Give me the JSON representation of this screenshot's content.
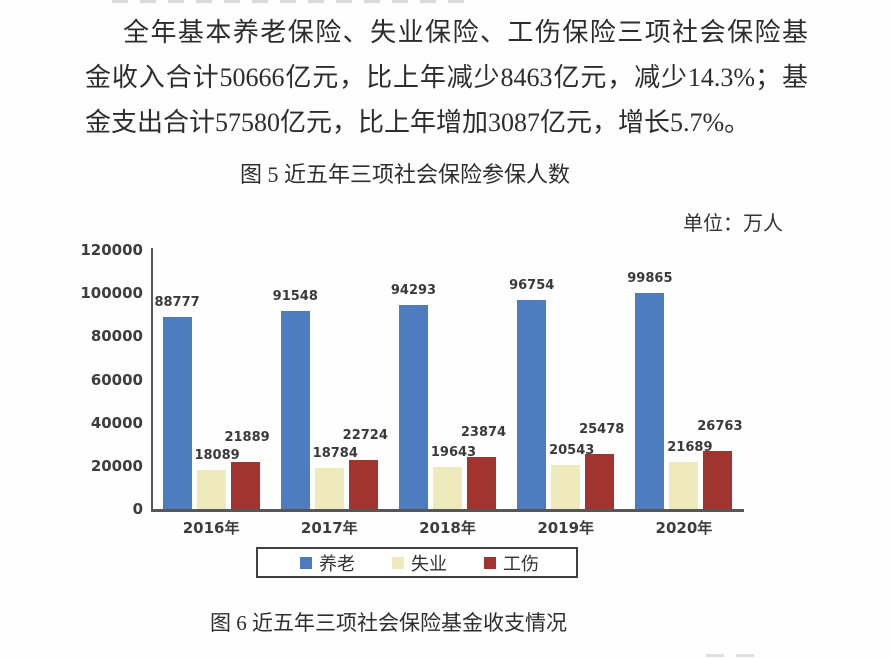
{
  "document": {
    "paragraph": {
      "full_text": "全年基本养老保险、失业保险、工伤保险三项社会保险基金收入合计50666亿元，比上年减少8463亿元，减少14.3%；基金支出合计57580亿元，比上年增加3087亿元，增长5.7%。",
      "lines": [
        "全年基本养老保险、失业保险、工伤保险三项社会保险基",
        "金收入合计50666亿元，比上年减少8463亿元，减少14.3%；基",
        "金支出合计57580亿元，比上年增加3087亿元，增长5.7%。"
      ]
    },
    "figure5_caption": "图 5  近五年三项社会保险参保人数",
    "unit_label": "单位：万人",
    "figure6_caption": "图 6  近五年三项社会保险基金收支情况"
  },
  "chart_data": {
    "type": "bar",
    "figure_number": "图 5",
    "title": "近五年三项社会保险参保人数",
    "unit": "万人",
    "categories": [
      "2016年",
      "2017年",
      "2018年",
      "2019年",
      "2020年"
    ],
    "series": [
      {
        "name": "养老",
        "color": "#4d7dbe",
        "values": [
          88777,
          91548,
          94293,
          96754,
          99865
        ]
      },
      {
        "name": "失业",
        "color": "#eeeabb",
        "values": [
          18089,
          18784,
          19643,
          20543,
          21689
        ]
      },
      {
        "name": "工伤",
        "color": "#a1342f",
        "values": [
          21889,
          22724,
          23874,
          25478,
          26763
        ]
      }
    ],
    "ylim": [
      0,
      120000
    ],
    "ytick_step": 20000,
    "yticks": [
      0,
      20000,
      40000,
      60000,
      80000,
      100000,
      120000
    ],
    "grid": false,
    "bar_labels": true,
    "legend_position": "bottom",
    "axis_color": "#57575a"
  }
}
